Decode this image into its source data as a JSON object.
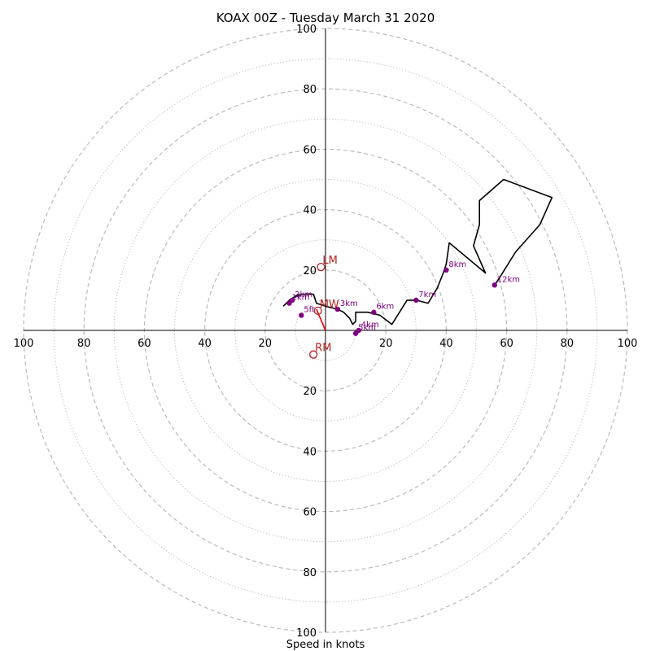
{
  "chart_data": {
    "type": "hodograph",
    "title": "KOAX 00Z - Tuesday March 31 2020",
    "xlabel": "Speed in knots",
    "radius_max": 100,
    "ring_labels": [
      "100",
      "80",
      "60",
      "40",
      "20"
    ],
    "rings_dashed": [
      20,
      40,
      60,
      80,
      100
    ],
    "rings_dotted": [
      10,
      30,
      50,
      70,
      90
    ],
    "colors": {
      "trace": "#000000",
      "height_points": "#800080",
      "motion": "#b22222",
      "grid": "#bbbbbb",
      "axes": "#000000"
    },
    "trace": [
      [
        -14,
        8
      ],
      [
        -12,
        10
      ],
      [
        -9,
        12
      ],
      [
        -10,
        11
      ],
      [
        -8,
        12
      ],
      [
        -6,
        12
      ],
      [
        -4,
        12
      ],
      [
        -3,
        9
      ],
      [
        0,
        8
      ],
      [
        4,
        7
      ],
      [
        6,
        6
      ],
      [
        8,
        4
      ],
      [
        9,
        2
      ],
      [
        10,
        3
      ],
      [
        10,
        6
      ],
      [
        14,
        6
      ],
      [
        18,
        5
      ],
      [
        22,
        2
      ],
      [
        27,
        10
      ],
      [
        30,
        10
      ],
      [
        34,
        9
      ],
      [
        37,
        14
      ],
      [
        39,
        19
      ],
      [
        40,
        22
      ],
      [
        41,
        29
      ],
      [
        53,
        19
      ],
      [
        49,
        28
      ],
      [
        51,
        35
      ],
      [
        51,
        41
      ],
      [
        51,
        43
      ],
      [
        59,
        50
      ],
      [
        75,
        44
      ],
      [
        71,
        35
      ],
      [
        63,
        26
      ],
      [
        58,
        18
      ],
      [
        56,
        15
      ]
    ],
    "height_points": [
      {
        "label": "5ft",
        "u": -8,
        "v": 5
      },
      {
        "label": "2km",
        "u": -11,
        "v": 10
      },
      {
        "label": "1km",
        "u": -12,
        "v": 9
      },
      {
        "label": "3km",
        "u": 4,
        "v": 7
      },
      {
        "label": "4km",
        "u": 11,
        "v": 0
      },
      {
        "label": "5km",
        "u": 10,
        "v": -1
      },
      {
        "label": "6km",
        "u": 16,
        "v": 6
      },
      {
        "label": "7km",
        "u": 30,
        "v": 10
      },
      {
        "label": "8km",
        "u": 40,
        "v": 20
      },
      {
        "label": "12km",
        "u": 56,
        "v": 15
      }
    ],
    "storm_motion": [
      {
        "label": "LM",
        "u": -1.5,
        "v": 21
      },
      {
        "label": "MW",
        "u": -2.5,
        "v": 6.5
      },
      {
        "label": "RM",
        "u": -4,
        "v": -8
      }
    ],
    "red_line": [
      [
        0,
        0
      ],
      [
        -3,
        7
      ]
    ]
  }
}
